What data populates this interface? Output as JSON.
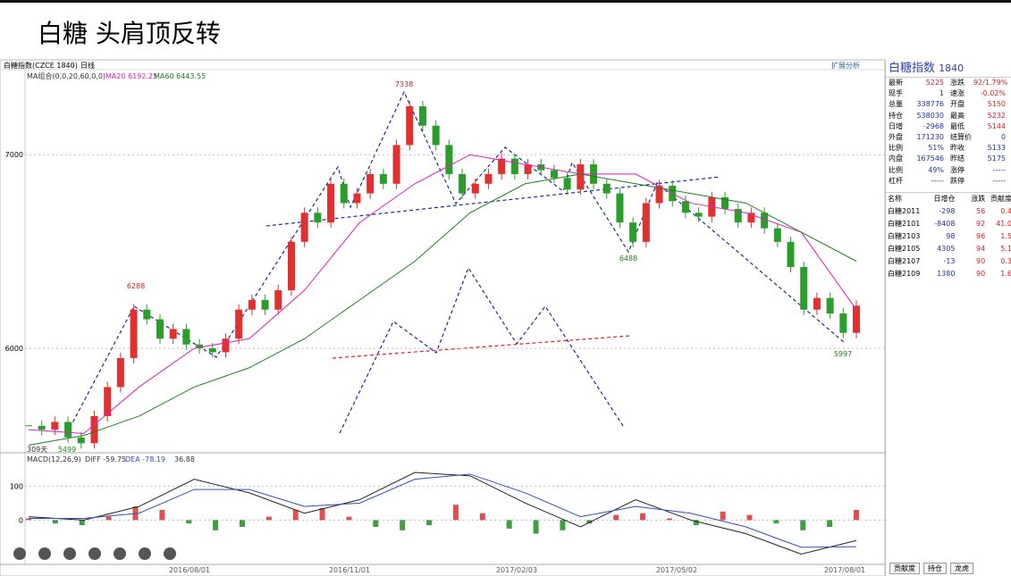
{
  "header": {
    "title": "白糖 头肩顶反转"
  },
  "toolbar": {
    "symbol": "白糖指数(CZCE 1840)",
    "period": "日线",
    "extend": "扩展分析"
  },
  "price_chart": {
    "type": "candlestick",
    "legend": [
      "MA组合(0,0,20,60,0,0)",
      "MA20 6192.25",
      "MA60 6443.55"
    ],
    "ylim": [
      5470,
      7430
    ],
    "yticks": [
      6000,
      7000
    ],
    "close": [
      5600,
      5580,
      5620,
      5540,
      5510,
      5650,
      5800,
      5950,
      6200,
      6150,
      6050,
      6100,
      6020,
      6000,
      5980,
      6050,
      6200,
      6250,
      6200,
      6300,
      6550,
      6700,
      6650,
      6850,
      6750,
      6800,
      6900,
      6850,
      7050,
      7250,
      7150,
      7050,
      6900,
      6800,
      6850,
      6900,
      6980,
      6900,
      6950,
      6920,
      6880,
      6820,
      6950,
      6850,
      6800,
      6650,
      6550,
      6750,
      6840,
      6760,
      6700,
      6680,
      6780,
      6720,
      6650,
      6700,
      6620,
      6550,
      6420,
      6200,
      6260,
      6180,
      6080,
      6220
    ],
    "ma20": [
      5580,
      5560,
      5800,
      6000,
      6050,
      6300,
      6650,
      6850,
      7000,
      6950,
      6900,
      6900,
      6750,
      6700,
      6600,
      6200
    ],
    "ma60": [
      5500,
      5550,
      5650,
      5800,
      5900,
      6050,
      6250,
      6450,
      6700,
      6850,
      6900,
      6850,
      6800,
      6750,
      6600,
      6450
    ],
    "annotations": [
      "7338",
      "6288",
      "5499",
      "6488",
      "5997",
      "309天"
    ],
    "x_labels": [
      "2016/08/01",
      "2016/11/01",
      "2017/02/03",
      "2017/05/02",
      "2017/08/01"
    ]
  },
  "macd_chart": {
    "type": "bar",
    "legend": [
      "MACD(12,26,9)",
      "DIFF -59.75",
      "DEA -78.19",
      "36.88"
    ],
    "ylim": [
      -125,
      190
    ],
    "yticks": [
      0,
      100
    ],
    "hist": [
      5,
      -10,
      -15,
      10,
      40,
      30,
      -10,
      -30,
      -20,
      10,
      30,
      35,
      10,
      -20,
      -30,
      -15,
      45,
      20,
      -25,
      -40,
      -30,
      -10,
      15,
      20,
      5,
      -15,
      25,
      15,
      -10,
      -30,
      -20,
      30
    ],
    "diff": [
      10,
      0,
      40,
      120,
      80,
      20,
      60,
      140,
      130,
      50,
      -20,
      60,
      0,
      -40,
      -100,
      -60
    ],
    "dea": [
      5,
      5,
      20,
      90,
      90,
      40,
      50,
      120,
      135,
      80,
      10,
      40,
      20,
      -20,
      -80,
      -78
    ]
  },
  "quote": {
    "name": "白糖指数",
    "code": "1840",
    "rows": [
      [
        "最新",
        "5225",
        "涨跌",
        "92/1.79%"
      ],
      [
        "现手",
        "1",
        "速涨",
        "-0.02%"
      ],
      [
        "总量",
        "338776",
        "开盘",
        "5150"
      ],
      [
        "持仓",
        "538030",
        "最高",
        "5232"
      ],
      [
        "日增",
        "-2968",
        "最低",
        "5144"
      ],
      [
        "外盘",
        "171230",
        "结算价",
        "0"
      ],
      [
        "比例",
        "51%",
        "昨收",
        "5133"
      ],
      [
        "内盘",
        "167546",
        "昨结",
        "5175"
      ],
      [
        "比例",
        "49%",
        "涨停",
        "-----"
      ],
      [
        "杠杆",
        "-----",
        "跌停",
        "-----"
      ]
    ]
  },
  "contracts": {
    "headers": [
      "名称",
      "日增仓",
      "涨跌",
      "贡献度"
    ],
    "rows": [
      [
        "白糖2011",
        "-298",
        "56",
        "0.4"
      ],
      [
        "白糖2101",
        "-8408",
        "92",
        "41.0"
      ],
      [
        "白糖2103",
        "98",
        "96",
        "1.5"
      ],
      [
        "白糖2105",
        "4305",
        "94",
        "5.1"
      ],
      [
        "白糖2107",
        "-13",
        "90",
        "0.3"
      ],
      [
        "白糖2109",
        "1380",
        "90",
        "1.6"
      ]
    ]
  },
  "tabs": [
    "贡献度",
    "持仓",
    "龙虎"
  ]
}
